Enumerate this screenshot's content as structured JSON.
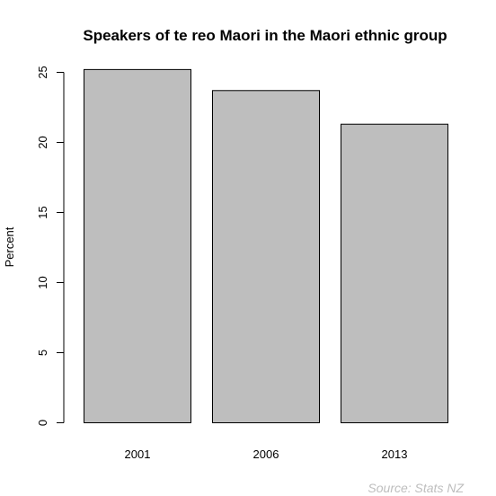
{
  "chart_data": {
    "type": "bar",
    "title": "Speakers of te reo Maori in the Maori ethnic group",
    "xlabel": "",
    "ylabel": "Percent",
    "categories": [
      "2001",
      "2006",
      "2013"
    ],
    "values": [
      25.2,
      23.7,
      21.3
    ],
    "ylim": [
      0,
      25
    ],
    "yticks": [
      "0",
      "5",
      "10",
      "15",
      "20",
      "25"
    ],
    "grid": false,
    "source": "Source: Stats NZ",
    "colors": {
      "bar_fill": "#bebebe",
      "bar_stroke": "#000000",
      "source_text": "#bebebe"
    }
  }
}
